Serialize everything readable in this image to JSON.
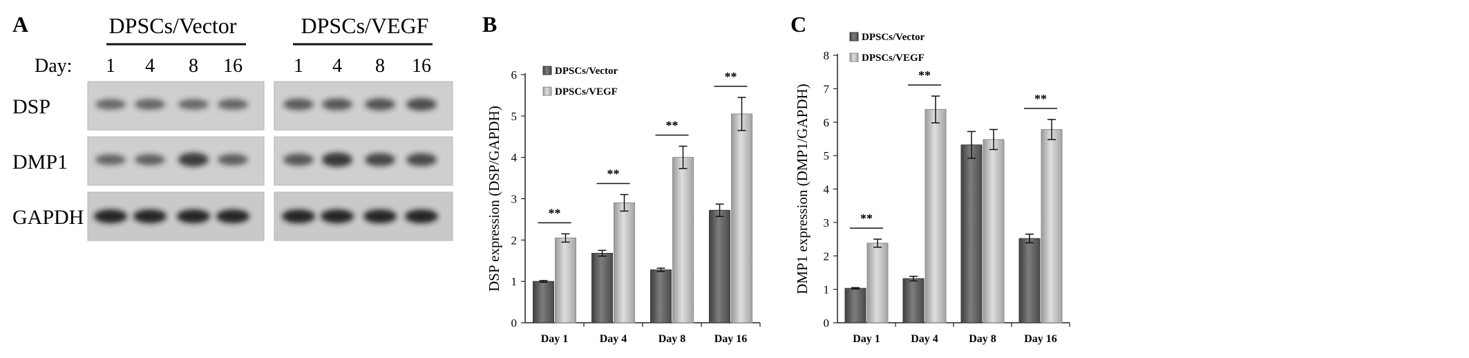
{
  "panel_a": {
    "label": "A",
    "groups": [
      "DPSCs/Vector",
      "DPSCs/VEGF"
    ],
    "day_label": "Day:",
    "days": [
      "1",
      "4",
      "8",
      "16"
    ],
    "rows": [
      "DSP",
      "DMP1",
      "GAPDH"
    ],
    "band_intensity": {
      "DSP": [
        [
          0.42,
          0.45,
          0.42,
          0.45
        ],
        [
          0.55,
          0.58,
          0.62,
          0.68
        ]
      ],
      "DMP1": [
        [
          0.45,
          0.5,
          0.85,
          0.52
        ],
        [
          0.6,
          0.9,
          0.75,
          0.72
        ]
      ],
      "GAPDH": [
        [
          1.0,
          1.0,
          1.0,
          1.0
        ],
        [
          1.0,
          1.0,
          1.0,
          1.0
        ]
      ]
    }
  },
  "chart_data": [
    {
      "type": "bar",
      "panel": "B",
      "categories": [
        "Day 1",
        "Day 4",
        "Day 8",
        "Day 16"
      ],
      "series": [
        {
          "name": "DPSCs/Vector",
          "values": [
            1.0,
            1.68,
            1.28,
            2.72
          ],
          "errors": [
            0.02,
            0.07,
            0.04,
            0.15
          ]
        },
        {
          "name": "DPSCs/VEGF",
          "values": [
            2.05,
            2.9,
            4.0,
            5.05
          ],
          "errors": [
            0.1,
            0.2,
            0.27,
            0.4
          ]
        }
      ],
      "significance": [
        "**",
        "**",
        "**",
        "**"
      ],
      "ylabel": "DSP expression (DSP/GAPDH)",
      "ylim": [
        0,
        6
      ],
      "yticks": [
        "0",
        "1",
        "2",
        "3",
        "4",
        "5",
        "6"
      ],
      "legend_position": "top-left",
      "grid": false
    },
    {
      "type": "bar",
      "panel": "C",
      "categories": [
        "Day 1",
        "Day 4",
        "Day 8",
        "Day 16"
      ],
      "series": [
        {
          "name": "DPSCs/Vector",
          "values": [
            1.03,
            1.32,
            5.32,
            2.52
          ],
          "errors": [
            0.02,
            0.07,
            0.4,
            0.13
          ]
        },
        {
          "name": "DPSCs/VEGF",
          "values": [
            2.38,
            6.38,
            5.48,
            5.78
          ],
          "errors": [
            0.12,
            0.4,
            0.3,
            0.3
          ]
        }
      ],
      "significance": [
        "**",
        "**",
        "",
        "**"
      ],
      "ylabel": "DMP1 expression (DMP1/GAPDH)",
      "ylim": [
        0,
        8
      ],
      "yticks": [
        "0",
        "1",
        "2",
        "3",
        "4",
        "5",
        "6",
        "7",
        "8"
      ],
      "legend_position": "top-left",
      "grid": false
    }
  ],
  "colors": {
    "vector_bar": "#5a5a5a",
    "vector_bar_light": "#7c7c7c",
    "vegf_bar": "#a8a8a8",
    "vegf_bar_light": "#d4d4d4",
    "axis": "#222222",
    "blot_bg": "#cfcfcf",
    "band": "#1a1a1a"
  }
}
